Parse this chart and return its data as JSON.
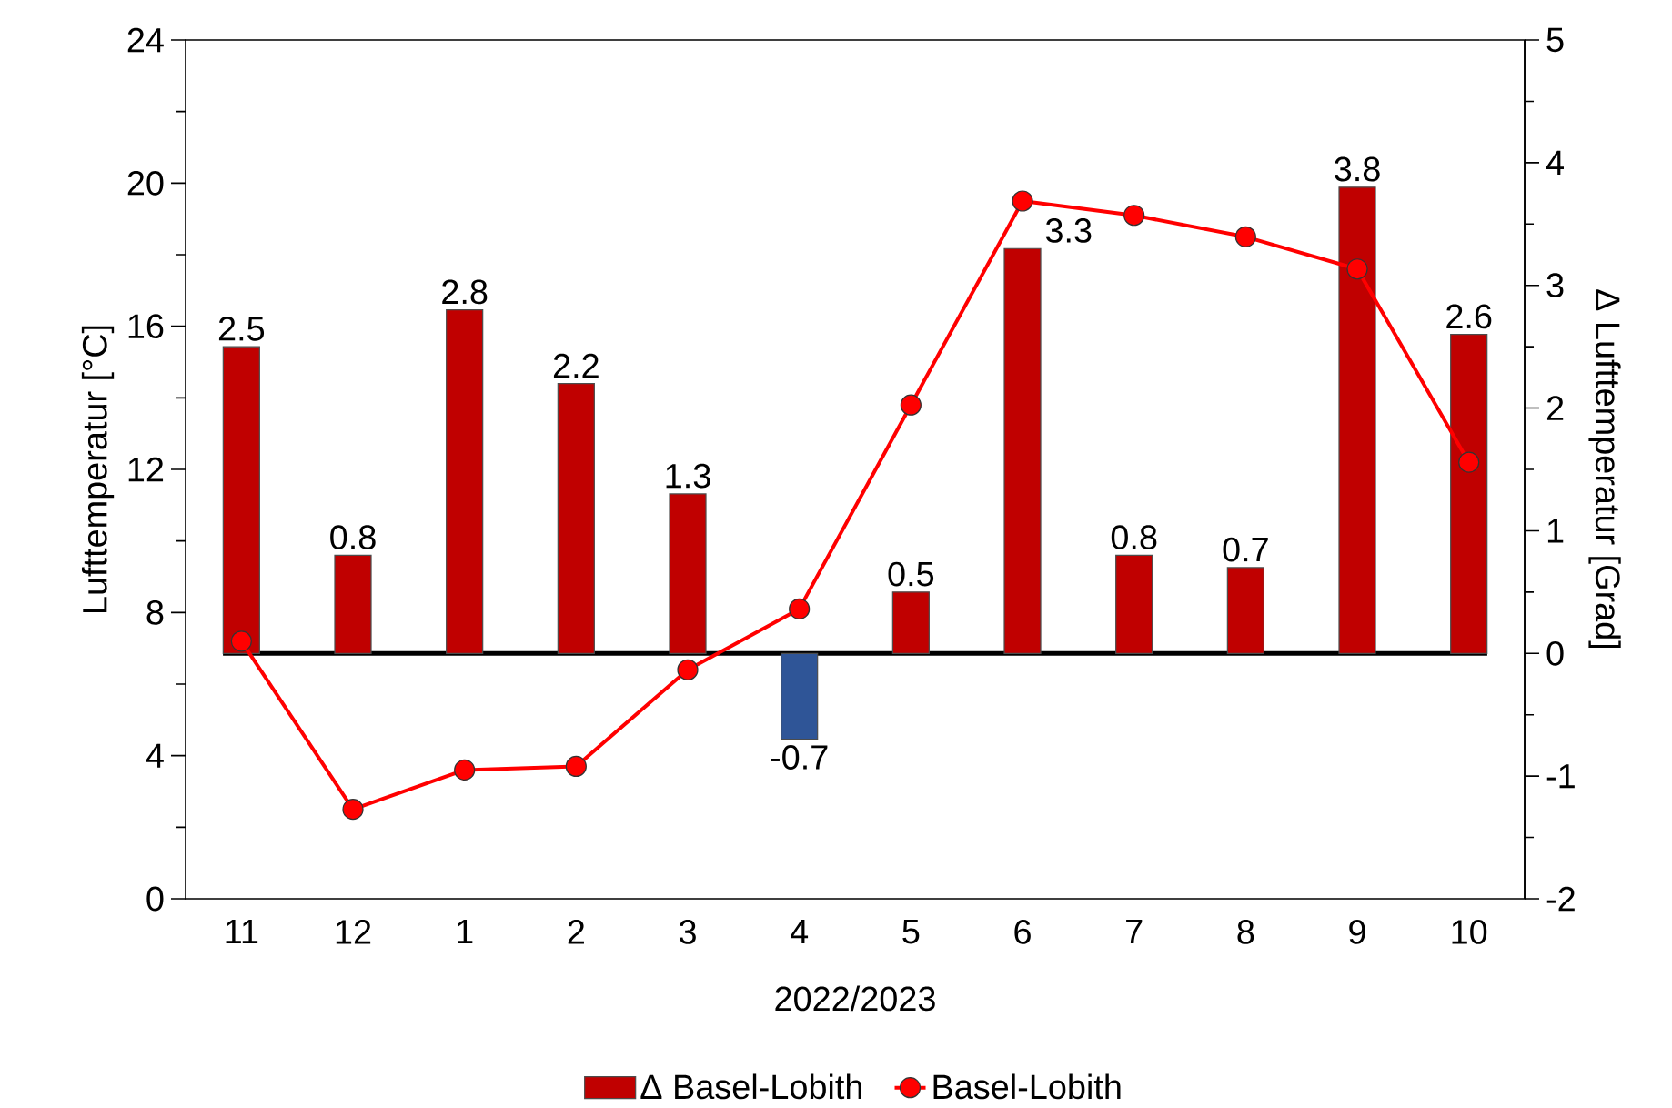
{
  "chart_data": {
    "type": "bar",
    "xlabel": "2022/2023",
    "ylabel": "Lufttemperatur [°C]",
    "y2label": "Δ Lufttemperatur [Grad]",
    "categories": [
      "11",
      "12",
      "1",
      "2",
      "3",
      "4",
      "5",
      "6",
      "7",
      "8",
      "9",
      "10"
    ],
    "series": [
      {
        "name": "Δ Basel-Lobith",
        "axis": "y2",
        "color": "#c00000",
        "colors": [
          "#c00000",
          "#c00000",
          "#c00000",
          "#c00000",
          "#c00000",
          "#2f5597",
          "#c00000",
          "#c00000",
          "#c00000",
          "#c00000",
          "#c00000",
          "#c00000"
        ],
        "values": [
          2.5,
          0.8,
          2.8,
          2.2,
          1.3,
          -0.7,
          0.5,
          3.3,
          0.8,
          0.7,
          3.8,
          2.6
        ],
        "value_labels": [
          "2.5",
          "0.8",
          "2.8",
          "2.2",
          "1.3",
          "-0.7",
          "0.5",
          "3.3",
          "0.8",
          "0.7",
          "3.8",
          "2.6"
        ]
      },
      {
        "name": "Basel-Lobith",
        "type": "line",
        "color": "#ff0000",
        "marker": "circle",
        "values": [
          7.2,
          2.5,
          3.6,
          3.7,
          6.4,
          8.1,
          13.8,
          19.5,
          19.1,
          18.5,
          17.6,
          12.2
        ]
      }
    ],
    "ylim": [
      0,
      24
    ],
    "yticks": [
      0,
      4,
      8,
      12,
      16,
      20,
      24
    ],
    "y2lim": [
      -2,
      5
    ],
    "y2ticks": [
      -2,
      -1,
      0,
      1,
      2,
      3,
      4,
      5
    ],
    "legend": "bottom"
  }
}
